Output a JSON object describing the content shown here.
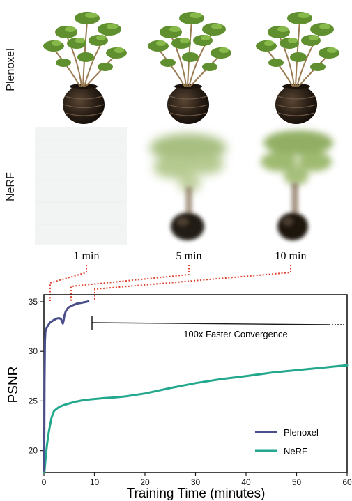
{
  "rows": [
    {
      "label": "Plenoxel"
    },
    {
      "label": "NeRF"
    }
  ],
  "time_labels": [
    "1 min",
    "5 min",
    "10 min"
  ],
  "annotation": "100x Faster Convergence",
  "colors": {
    "plenoxel": "#4a4e8a",
    "nerf": "#23a88e",
    "connector": "#e0432f",
    "foliage": "#5f8f2e",
    "pot": "#2a2018"
  },
  "chart_data": {
    "type": "line",
    "xlabel": "Training Time (minutes)",
    "ylabel": "PSNR",
    "xlim": [
      0,
      60
    ],
    "ylim": [
      17.8,
      35.7
    ],
    "xticks": [
      0,
      10,
      20,
      30,
      40,
      50,
      60
    ],
    "yticks": [
      20,
      25,
      30,
      35
    ],
    "grid": false,
    "legend_position": "bottom-right",
    "series": [
      {
        "name": "Plenoxel",
        "x": [
          0.05,
          0.12,
          0.2,
          0.3,
          0.5,
          0.8,
          1.2,
          1.8,
          2.5,
          3.0,
          3.4,
          3.6,
          3.75,
          3.9,
          4.05,
          4.3,
          4.8,
          5.5,
          6.5,
          7.5,
          8.5,
          8.8
        ],
        "y": [
          18.0,
          27.0,
          31.0,
          32.0,
          32.3,
          32.6,
          32.9,
          33.1,
          33.3,
          33.35,
          33.25,
          33.0,
          32.8,
          33.1,
          33.6,
          34.0,
          34.4,
          34.6,
          34.8,
          34.9,
          35.0,
          35.05
        ]
      },
      {
        "name": "NeRF",
        "x": [
          0.1,
          0.3,
          0.6,
          1.0,
          1.5,
          2.0,
          3.0,
          4.0,
          5.0,
          6.0,
          8.0,
          10.0,
          12.0,
          14.0,
          16.0,
          18.0,
          20.0,
          25.0,
          30.0,
          35.0,
          40.0,
          45.0,
          50.0,
          55.0,
          60.0
        ],
        "y": [
          17.8,
          19.0,
          20.5,
          22.0,
          23.3,
          24.0,
          24.4,
          24.6,
          24.75,
          24.9,
          25.1,
          25.2,
          25.3,
          25.35,
          25.45,
          25.6,
          25.75,
          26.3,
          26.8,
          27.2,
          27.5,
          27.85,
          28.1,
          28.35,
          28.6
        ]
      }
    ]
  }
}
